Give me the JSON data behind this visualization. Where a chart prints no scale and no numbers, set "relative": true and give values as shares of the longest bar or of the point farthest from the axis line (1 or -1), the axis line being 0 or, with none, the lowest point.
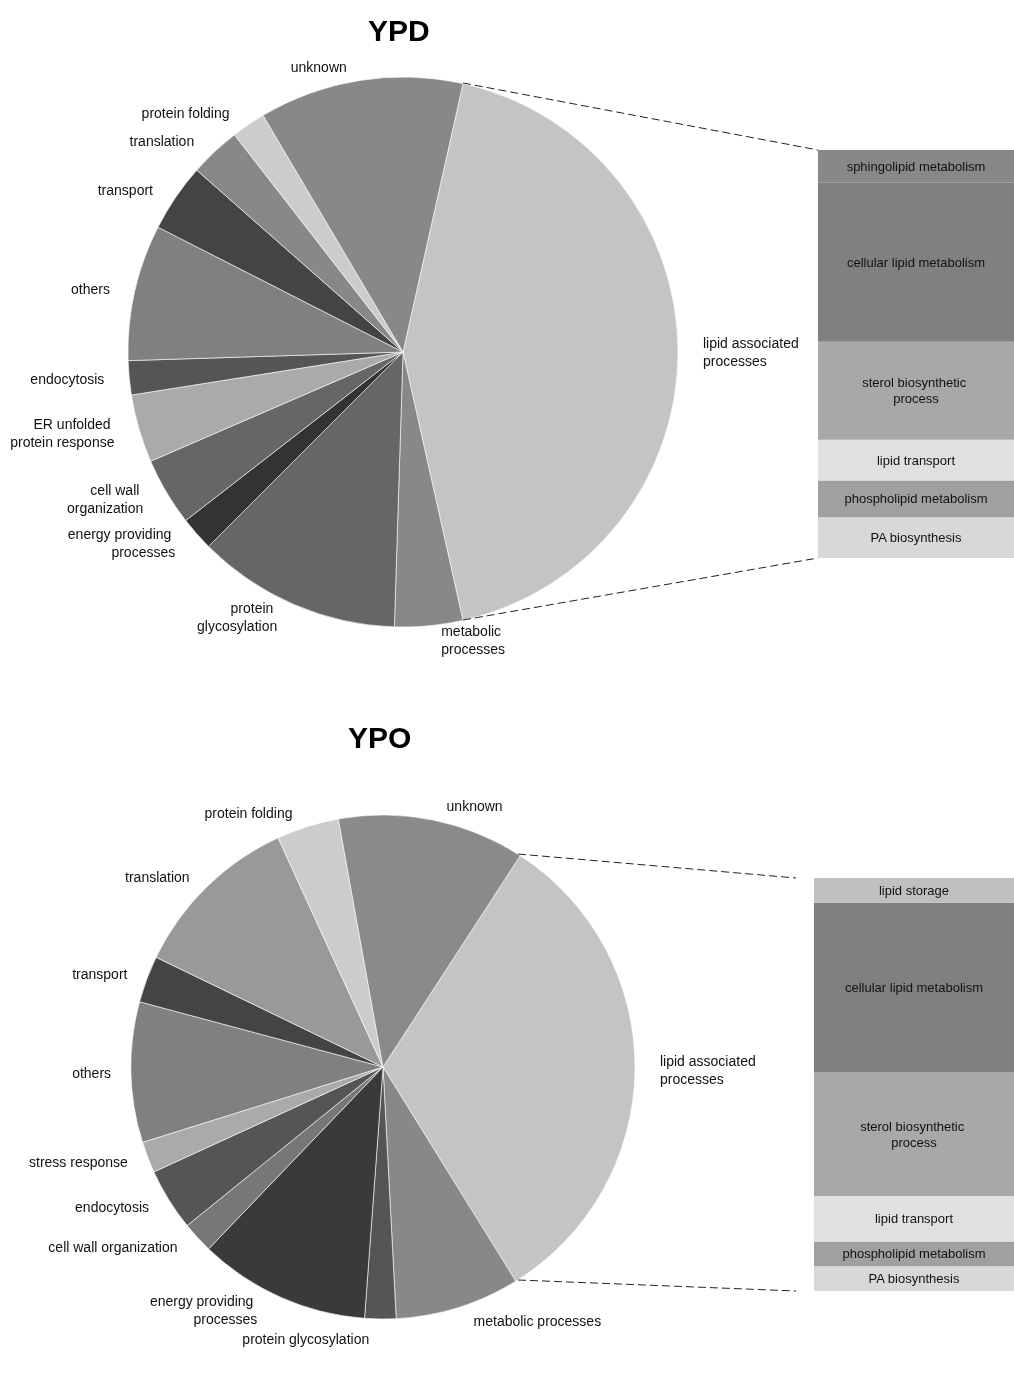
{
  "chart_data": [
    {
      "type": "pie",
      "title": "YPD",
      "categories": [
        "lipid associated processes",
        "metabolic processes",
        "protein glycosylation",
        "energy providing processes",
        "cell wall organization",
        "ER unfolded protein response",
        "endocytosis",
        "others",
        "transport",
        "translation",
        "protein folding",
        "unknown"
      ],
      "values": [
        43,
        4,
        12,
        2,
        4,
        4,
        2,
        8,
        4,
        3,
        2,
        12
      ],
      "colors": [
        "#c4c4c4",
        "#888888",
        "#666666",
        "#333333",
        "#666666",
        "#aaaaaa",
        "#555555",
        "#808080",
        "#444444",
        "#888888",
        "#cccccc",
        "#888888"
      ]
    },
    {
      "type": "bar",
      "stacked": true,
      "relative": true,
      "categories": [
        null
      ],
      "series": [
        {
          "name": "PA biosynthesis",
          "color": "#d8d8d8",
          "values": [
            0.1
          ]
        },
        {
          "name": "phospholipid metabolism",
          "color": "#a0a0a0",
          "values": [
            0.09
          ]
        },
        {
          "name": "lipid transport",
          "color": "#e0e0e0",
          "values": [
            0.1
          ]
        },
        {
          "name": "sterol biosynthetic process",
          "color": "#a8a8a8",
          "values": [
            0.24
          ]
        },
        {
          "name": "cellular lipid metabolism",
          "color": "#808080",
          "values": [
            0.39
          ]
        },
        {
          "name": "sphingolipid metabolism",
          "color": "#888888",
          "values": [
            0.08
          ]
        }
      ]
    },
    {
      "type": "pie",
      "title": "YPO",
      "categories": [
        "lipid associated processes",
        "metabolic processes",
        "protein glycosylation",
        "energy providing processes",
        "cell wall organization",
        "endocytosis",
        "stress response",
        "others",
        "transport",
        "translation",
        "protein folding",
        "unknown"
      ],
      "values": [
        32,
        8,
        2,
        11,
        2,
        4,
        2,
        9,
        3,
        11,
        4,
        12
      ],
      "colors": [
        "#c4c4c4",
        "#888888",
        "#555555",
        "#3a3a3a",
        "#777777",
        "#555555",
        "#aaaaaa",
        "#808080",
        "#444444",
        "#999999",
        "#cccccc",
        "#8a8a8a"
      ]
    },
    {
      "type": "bar",
      "stacked": true,
      "relative": true,
      "categories": [
        null
      ],
      "series": [
        {
          "name": "PA biosynthesis",
          "color": "#d8d8d8",
          "values": [
            0.06
          ]
        },
        {
          "name": "phospholipid metabolism",
          "color": "#a0a0a0",
          "values": [
            0.06
          ]
        },
        {
          "name": "lipid transport",
          "color": "#e0e0e0",
          "values": [
            0.11
          ]
        },
        {
          "name": "sterol biosynthetic process",
          "color": "#a8a8a8",
          "values": [
            0.3
          ]
        },
        {
          "name": "cellular lipid metabolism",
          "color": "#808080",
          "values": [
            0.41
          ]
        },
        {
          "name": "lipid storage",
          "color": "#c0c0c0",
          "values": [
            0.06
          ]
        }
      ]
    }
  ]
}
